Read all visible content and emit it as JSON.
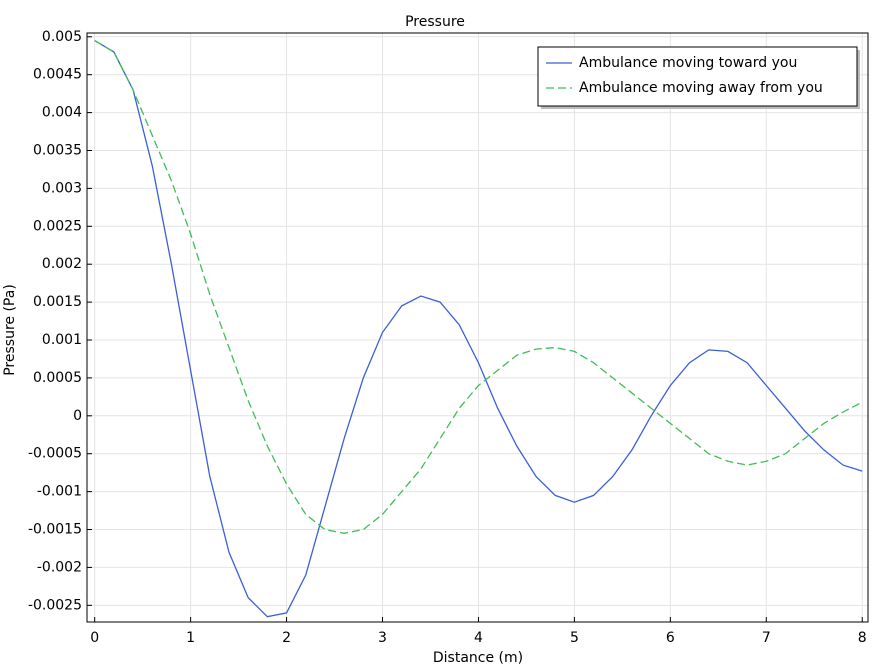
{
  "chart_data": {
    "type": "line",
    "title": "Pressure",
    "x_label": "Distance (m)",
    "y_label": "Pressure (Pa)",
    "x": [
      0,
      0.2,
      0.4,
      0.6,
      0.8,
      1,
      1.2,
      1.4,
      1.6,
      1.8,
      2,
      2.2,
      2.4,
      2.6,
      2.8,
      3,
      3.2,
      3.4,
      3.6,
      3.8,
      4,
      4.2,
      4.4,
      4.6,
      4.8,
      5,
      5.2,
      5.4,
      5.6,
      5.8,
      6,
      6.2,
      6.4,
      6.6,
      6.8,
      7,
      7.2,
      7.4,
      7.6,
      7.8,
      8
    ],
    "series": [
      {
        "name": "Ambulance moving toward you",
        "color": "#3b5fd9",
        "dash": false,
        "values": [
          0.00495,
          0.0048,
          0.0043,
          0.0033,
          0.002,
          0.0006,
          -0.0008,
          -0.0018,
          -0.0024,
          -0.00265,
          -0.0026,
          -0.0021,
          -0.0012,
          -0.0003,
          0.0005,
          0.0011,
          0.00145,
          0.00158,
          0.0015,
          0.0012,
          0.0007,
          0.0001,
          -0.0004,
          -0.0008,
          -0.00105,
          -0.00114,
          -0.00105,
          -0.0008,
          -0.00045,
          0,
          0.0004,
          0.0007,
          0.00087,
          0.00085,
          0.0007,
          0.0004,
          0.0001,
          -0.0002,
          -0.00045,
          -0.00065,
          -0.00073
        ]
      },
      {
        "name": "Ambulance moving away from you",
        "color": "#3fbf55",
        "dash": true,
        "values": [
          0.00495,
          0.0048,
          0.0043,
          0.0037,
          0.0031,
          0.0024,
          0.0016,
          0.0009,
          0.0002,
          -0.0004,
          -0.0009,
          -0.0013,
          -0.0015,
          -0.00155,
          -0.0015,
          -0.0013,
          -0.001,
          -0.0007,
          -0.0003,
          0.0001,
          0.0004,
          0.0006,
          0.0008,
          0.00088,
          0.0009,
          0.00085,
          0.0007,
          0.0005,
          0.0003,
          0.0001,
          -0.0001,
          -0.0003,
          -0.0005,
          -0.0006,
          -0.00065,
          -0.0006,
          -0.0005,
          -0.0003,
          -0.0001,
          5e-05,
          0.00018
        ]
      }
    ],
    "xlim": [
      -0.08,
      8.06
    ],
    "ylim": [
      -0.00272,
      0.00505
    ],
    "xticks": [
      0,
      1,
      2,
      3,
      4,
      5,
      6,
      7,
      8
    ],
    "yticks": [
      0.005,
      0.0045,
      0.004,
      0.0035,
      0.003,
      0.0025,
      0.002,
      0.0015,
      0.001,
      0.0005,
      0,
      -0.0005,
      -0.001,
      -0.0015,
      -0.002,
      -0.0025
    ],
    "grid": true,
    "legend": "upper-right"
  }
}
